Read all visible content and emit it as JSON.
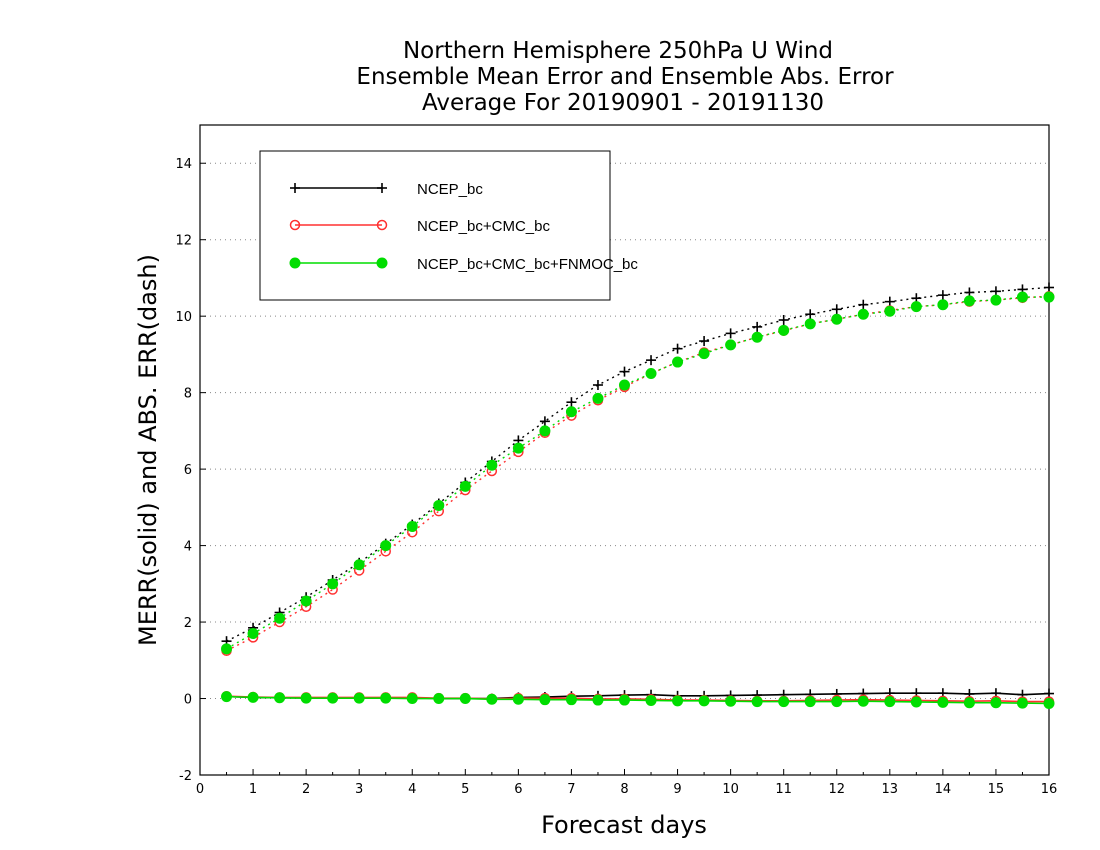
{
  "chart_data": {
    "type": "line",
    "title_lines": [
      "Northern Hemisphere 250hPa U Wind",
      "Ensemble Mean Error and Ensemble Abs. Error",
      "Average For 20190901 - 20191130"
    ],
    "xlabel": "Forecast days",
    "ylabel": "MERR(solid) and ABS. ERR(dash)",
    "xlim": [
      0,
      16
    ],
    "ylim": [
      -2,
      15
    ],
    "x_ticks": [
      "0",
      "1",
      "2",
      "3",
      "4",
      "5",
      "6",
      "7",
      "8",
      "9",
      "10",
      "11",
      "12",
      "13",
      "14",
      "15",
      "16"
    ],
    "y_ticks": [
      "-2",
      "0",
      "2",
      "4",
      "6",
      "8",
      "10",
      "12",
      "14"
    ],
    "grid": "horizontal dotted",
    "legend_position": "top-left",
    "x": [
      0.5,
      1,
      1.5,
      2,
      2.5,
      3,
      3.5,
      4,
      4.5,
      5,
      5.5,
      6,
      6.5,
      7,
      7.5,
      8,
      8.5,
      9,
      9.5,
      10,
      10.5,
      11,
      11.5,
      12,
      12.5,
      13,
      13.5,
      14,
      14.5,
      15,
      15.5,
      16
    ],
    "series": [
      {
        "name": "NCEP_bc",
        "color": "#000000",
        "marker": "plus",
        "abs_err": [
          1.5,
          1.85,
          2.25,
          2.65,
          3.1,
          3.55,
          4.05,
          4.55,
          5.1,
          5.65,
          6.2,
          6.75,
          7.25,
          7.75,
          8.2,
          8.55,
          8.85,
          9.15,
          9.35,
          9.55,
          9.72,
          9.9,
          10.05,
          10.18,
          10.3,
          10.38,
          10.47,
          10.55,
          10.62,
          10.65,
          10.7,
          10.75
        ],
        "mean_err": [
          0.05,
          0.03,
          0.02,
          0.02,
          0.02,
          0.02,
          0.02,
          0.02,
          0.0,
          0.0,
          0.0,
          0.03,
          0.04,
          0.06,
          0.07,
          0.09,
          0.1,
          0.07,
          0.07,
          0.08,
          0.09,
          0.1,
          0.11,
          0.12,
          0.13,
          0.14,
          0.14,
          0.14,
          0.12,
          0.14,
          0.1,
          0.13
        ]
      },
      {
        "name": "NCEP_bc+CMC_bc",
        "color": "#ff3030",
        "marker": "open-circle",
        "abs_err": [
          1.25,
          1.6,
          2.0,
          2.4,
          2.85,
          3.35,
          3.85,
          4.35,
          4.9,
          5.45,
          5.95,
          6.45,
          6.95,
          7.4,
          7.8,
          8.15,
          8.5,
          8.8,
          9.05,
          9.25,
          9.45,
          9.62,
          9.8,
          9.92,
          10.05,
          10.15,
          10.25,
          10.3,
          10.38,
          10.42,
          10.48,
          10.52
        ],
        "mean_err": [
          0.06,
          0.04,
          0.03,
          0.03,
          0.03,
          0.03,
          0.03,
          0.03,
          0.01,
          0.01,
          -0.01,
          0.01,
          0.01,
          0.01,
          -0.01,
          -0.01,
          -0.02,
          -0.04,
          -0.04,
          -0.05,
          -0.06,
          -0.06,
          -0.05,
          -0.04,
          -0.03,
          -0.04,
          -0.05,
          -0.06,
          -0.07,
          -0.06,
          -0.08,
          -0.08
        ]
      },
      {
        "name": "NCEP_bc+CMC_bc+FNMOC_bc",
        "color": "#00dd00",
        "marker": "filled-circle",
        "abs_err": [
          1.3,
          1.7,
          2.1,
          2.55,
          3.0,
          3.5,
          4.0,
          4.5,
          5.05,
          5.55,
          6.1,
          6.55,
          7.0,
          7.5,
          7.85,
          8.2,
          8.5,
          8.8,
          9.02,
          9.25,
          9.45,
          9.63,
          9.8,
          9.92,
          10.05,
          10.13,
          10.25,
          10.3,
          10.4,
          10.42,
          10.5,
          10.5
        ],
        "mean_err": [
          0.05,
          0.03,
          0.02,
          0.01,
          0.01,
          0.01,
          0.01,
          0.0,
          0.0,
          0.0,
          -0.02,
          -0.02,
          -0.03,
          -0.03,
          -0.04,
          -0.04,
          -0.05,
          -0.06,
          -0.06,
          -0.07,
          -0.08,
          -0.08,
          -0.08,
          -0.08,
          -0.07,
          -0.08,
          -0.09,
          -0.1,
          -0.11,
          -0.11,
          -0.12,
          -0.13
        ]
      }
    ]
  }
}
